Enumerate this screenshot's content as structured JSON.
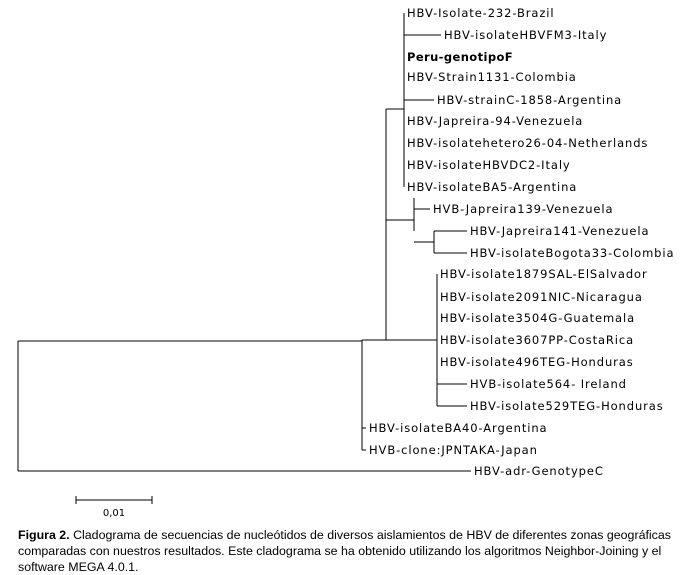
{
  "figure": {
    "caption_label": "Figura 2.",
    "caption_text": " Cladograma de secuencias de nucleótidos de diversos aislamientos de HBV de diferentes zonas geográficas comparadas con nuestros resultados. Este cladograma se ha obtenido utilizando los algoritmos Neighbor-Joining y el software MEGA 4.0.1."
  },
  "tree": {
    "leaves": [
      {
        "label": "HBV-Isolate-232-Brazil",
        "bold": false
      },
      {
        "label": "HBV-isolateHBVFM3-Italy",
        "bold": false
      },
      {
        "label": "Peru-genotipoF",
        "bold": true
      },
      {
        "label": "HBV-Strain1131-Colombia",
        "bold": false
      },
      {
        "label": "HBV-strainC-1858-Argentina",
        "bold": false
      },
      {
        "label": "HBV-Japreira-94-Venezuela",
        "bold": false
      },
      {
        "label": "HBV-isolatehetero26-04-Netherlands",
        "bold": false
      },
      {
        "label": "HBV-isolateHBVDC2-Italy",
        "bold": false
      },
      {
        "label": "HBV-isolateBA5-Argentina",
        "bold": false
      },
      {
        "label": "HVB-Japreira139-Venezuela",
        "bold": false
      },
      {
        "label": "HBV-Japreira141-Venezuela",
        "bold": false
      },
      {
        "label": "HBV-isolateBogota33-Colombia",
        "bold": false
      },
      {
        "label": "HBV-isolate1879SAL-ElSalvador",
        "bold": false
      },
      {
        "label": "HBV-isolate2091NIC-Nicaragua",
        "bold": false
      },
      {
        "label": "HBV-isolate3504G-Guatemala",
        "bold": false
      },
      {
        "label": "HBV-isolate3607PP-CostaRica",
        "bold": false
      },
      {
        "label": "HBV-isolate496TEG-Honduras",
        "bold": false
      },
      {
        "label": "HVB-isolate564- Ireland",
        "bold": false
      },
      {
        "label": "HBV-isolate529TEG-Honduras",
        "bold": false
      },
      {
        "label": "HBV-isolateBA40-Argentina",
        "bold": false
      },
      {
        "label": "HVB-clone:JPNTAKA-Japan",
        "bold": false
      },
      {
        "label": "HBV-adr-GenotypeC",
        "bold": false
      }
    ],
    "scale_bar_label": "0,01"
  }
}
